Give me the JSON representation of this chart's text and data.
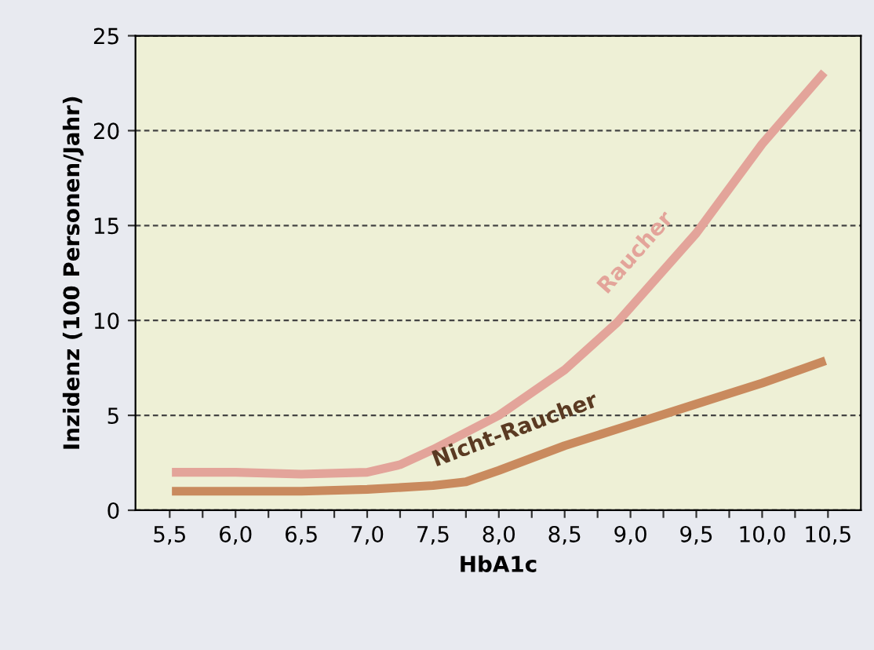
{
  "chart_data": {
    "type": "line",
    "xlabel": "HbA1c",
    "ylabel": "Inzidenz (100 Personen/Jahr)",
    "xlim": [
      5.24,
      10.75
    ],
    "ylim": [
      0,
      25
    ],
    "xticks": [
      {
        "value": 5.5,
        "label": "5,5"
      },
      {
        "value": 5.75,
        "label": null
      },
      {
        "value": 6.0,
        "label": "6,0"
      },
      {
        "value": 6.25,
        "label": null
      },
      {
        "value": 6.5,
        "label": "6,5"
      },
      {
        "value": 6.75,
        "label": null
      },
      {
        "value": 7.0,
        "label": "7,0"
      },
      {
        "value": 7.25,
        "label": null
      },
      {
        "value": 7.5,
        "label": "7,5"
      },
      {
        "value": 7.75,
        "label": null
      },
      {
        "value": 8.0,
        "label": "8,0"
      },
      {
        "value": 8.25,
        "label": null
      },
      {
        "value": 8.5,
        "label": "8,5"
      },
      {
        "value": 8.75,
        "label": null
      },
      {
        "value": 9.0,
        "label": "9,0"
      },
      {
        "value": 9.25,
        "label": null
      },
      {
        "value": 9.5,
        "label": "9,5"
      },
      {
        "value": 9.75,
        "label": null
      },
      {
        "value": 10.0,
        "label": "10,0"
      },
      {
        "value": 10.25,
        "label": null
      },
      {
        "value": 10.5,
        "label": "10,5"
      }
    ],
    "yticks": [
      0,
      5,
      10,
      15,
      20,
      25
    ],
    "grid": "y",
    "legend": false,
    "line_style": "solid",
    "marker": "none",
    "series": [
      {
        "name": "Raucher",
        "color": "#e3a49a",
        "x": [
          5.55,
          6.0,
          6.5,
          7.0,
          7.25,
          7.5,
          8.0,
          8.5,
          8.9,
          9.5,
          10.0,
          10.45
        ],
        "values": [
          2.0,
          2.0,
          1.9,
          2.0,
          2.4,
          3.2,
          5.0,
          7.4,
          9.9,
          14.6,
          19.3,
          22.9
        ]
      },
      {
        "name": "Nicht-Raucher",
        "color": "#c98a5e",
        "x": [
          5.55,
          6.0,
          6.5,
          7.0,
          7.5,
          7.75,
          8.0,
          8.5,
          9.0,
          9.5,
          10.0,
          10.45
        ],
        "values": [
          1.0,
          1.0,
          1.0,
          1.1,
          1.3,
          1.5,
          2.1,
          3.4,
          4.5,
          5.6,
          6.7,
          7.8
        ]
      }
    ]
  }
}
